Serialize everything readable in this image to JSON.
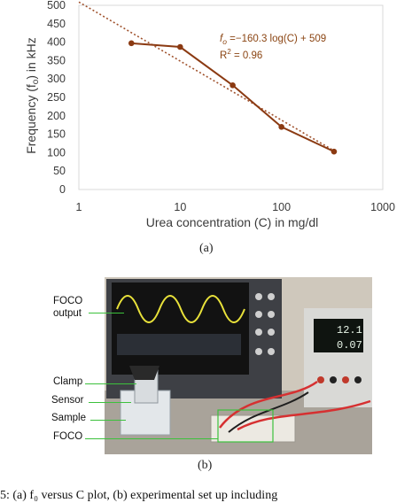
{
  "chart_data": {
    "type": "line",
    "x_scale": "log",
    "xlim": [
      1,
      1000
    ],
    "ylim": [
      0,
      500
    ],
    "x_ticks": [
      "1",
      "10",
      "100",
      "1000"
    ],
    "y_ticks": [
      "0",
      "50",
      "100",
      "150",
      "200",
      "250",
      "300",
      "350",
      "400",
      "450",
      "500"
    ],
    "xlabel": "Urea concentration (C) in mg/dl",
    "ylabel_prefix": "Frequency (f",
    "ylabel_sub": "o",
    "ylabel_suffix": ") in kHz",
    "series": [
      {
        "x": [
          3.3,
          10,
          33,
          100,
          330
        ],
        "y": [
          397,
          387,
          283,
          170,
          103
        ],
        "color": "#8b3a12"
      }
    ],
    "trendline": {
      "slope": -160.3,
      "intercept": 509,
      "color": "#a0522d"
    },
    "equation": {
      "f_label": "f",
      "f_sub": "o",
      "rhs": " =−160.3 log(C) + 509",
      "r2_prefix": "R",
      "r2_sup": "2",
      "r2_value": " = 0.96"
    },
    "grid": false
  },
  "captions": {
    "a": "(a)",
    "b": "(b)"
  },
  "photo": {
    "labels": {
      "foco_output_1": "FOCO",
      "foco_output_2": "output",
      "clamp": "Clamp",
      "sensor": "Sensor",
      "sample": "Sample",
      "foco": "FOCO"
    },
    "readout_1": "12.1",
    "readout_2": "0.07"
  },
  "bottom_text": "5: (a)  f₀ versus C plot, (b) experimental set up including"
}
